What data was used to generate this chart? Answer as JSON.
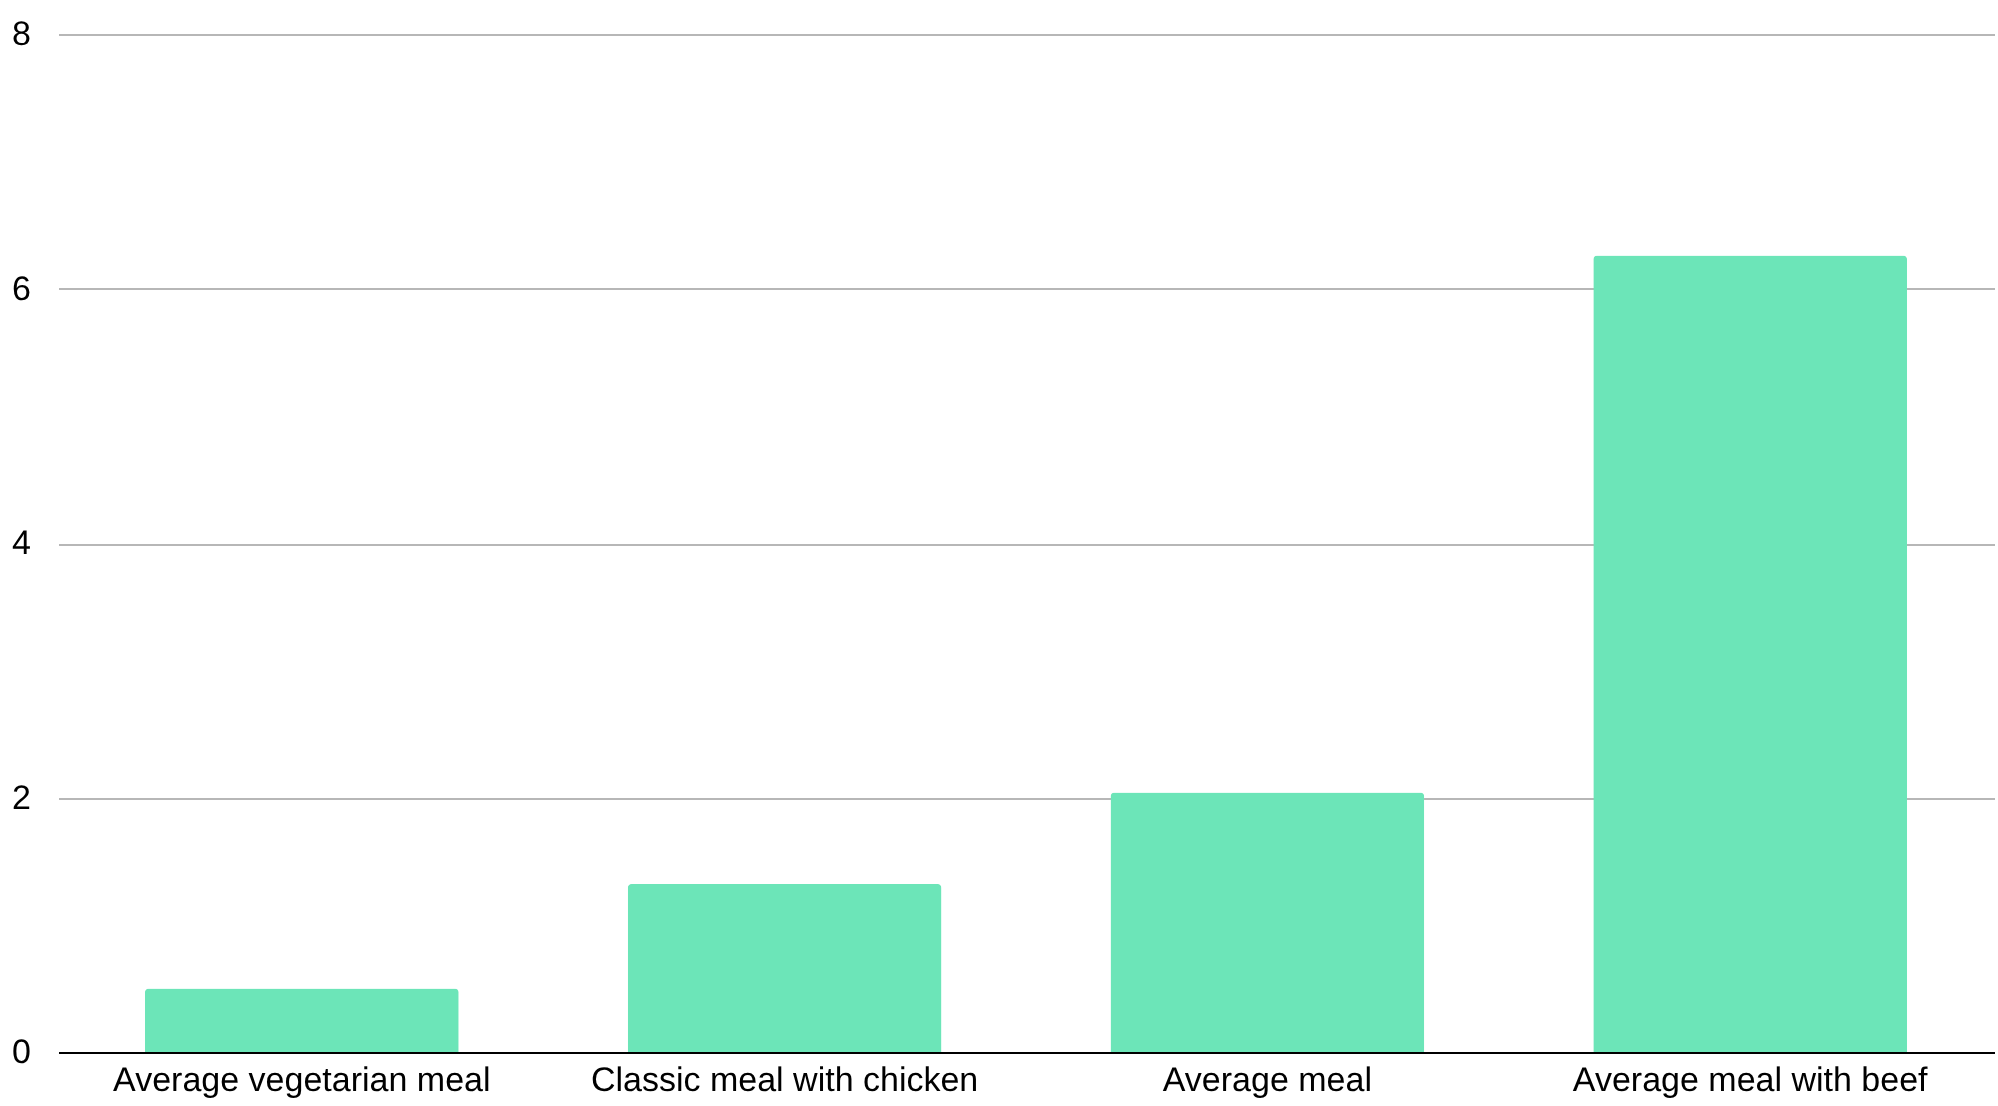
{
  "chart_data": {
    "type": "bar",
    "categories": [
      "Average vegetarian meal",
      "Classic meal with chicken",
      "Average meal",
      "Average meal with beef"
    ],
    "values": [
      0.5,
      1.32,
      2.04,
      6.26
    ],
    "color": "#6ce5b8",
    "ylim": [
      0,
      8
    ],
    "yticks": [
      0,
      2,
      4,
      6,
      8
    ],
    "grid": "y"
  }
}
